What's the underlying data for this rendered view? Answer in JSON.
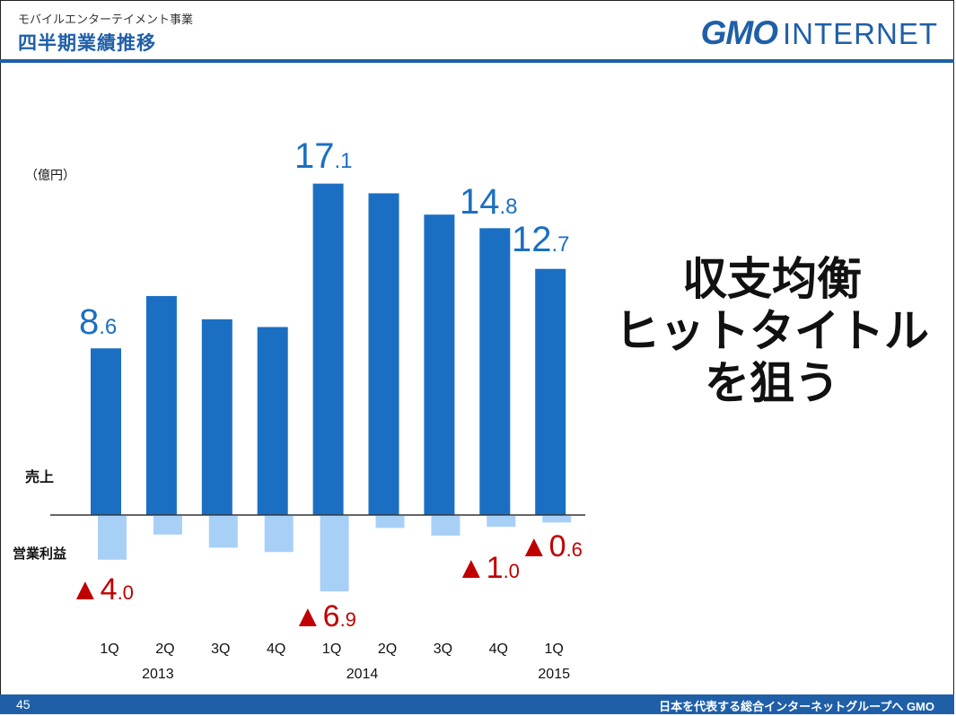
{
  "header": {
    "subtitle": "モバイルエンターテイメント事業",
    "title": "四半期業績推移",
    "logo_main": "GMO",
    "logo_sub": "INTERNET"
  },
  "footer": {
    "page_number": "45",
    "tagline": "日本を代表する総合インターネットグループへ GMO"
  },
  "callout": {
    "line1": "収支均衡",
    "line2": "ヒットタイトル",
    "line3": "を狙う"
  },
  "colors": {
    "brand": "#1f5fa8",
    "sales_bar": "#1a6fc2",
    "profit_bar": "#a8d0f7",
    "negative": "#c00000"
  },
  "chart_data": {
    "type": "bar",
    "unit_label": "（億円）",
    "categories": [
      "1Q",
      "2Q",
      "3Q",
      "4Q",
      "1Q",
      "2Q",
      "3Q",
      "4Q",
      "1Q"
    ],
    "year_labels": [
      {
        "label": "2013",
        "category_index": 1
      },
      {
        "label": "2014",
        "category_index": 5
      },
      {
        "label": "2015",
        "category_index": 8
      }
    ],
    "series": [
      {
        "name": "売上",
        "values": [
          8.6,
          11.3,
          10.1,
          9.7,
          17.1,
          16.6,
          15.5,
          14.8,
          12.7
        ]
      },
      {
        "name": "営業利益",
        "values": [
          -4.0,
          -1.7,
          -2.9,
          -3.3,
          -6.9,
          -1.1,
          -1.8,
          -1.0,
          -0.6
        ]
      }
    ],
    "data_labels": [
      {
        "series": 0,
        "index": 0,
        "main": "8",
        "decimal": ".6"
      },
      {
        "series": 0,
        "index": 4,
        "main": "17",
        "decimal": ".1"
      },
      {
        "series": 0,
        "index": 7,
        "main": "14",
        "decimal": ".8"
      },
      {
        "series": 0,
        "index": 8,
        "main": "12",
        "decimal": ".7"
      },
      {
        "series": 1,
        "index": 0,
        "main": "▲4",
        "decimal": ".0"
      },
      {
        "series": 1,
        "index": 4,
        "main": "▲6",
        "decimal": ".9"
      },
      {
        "series": 1,
        "index": 7,
        "main": "▲1",
        "decimal": ".0"
      },
      {
        "series": 1,
        "index": 8,
        "main": "▲0",
        "decimal": ".6"
      }
    ]
  }
}
